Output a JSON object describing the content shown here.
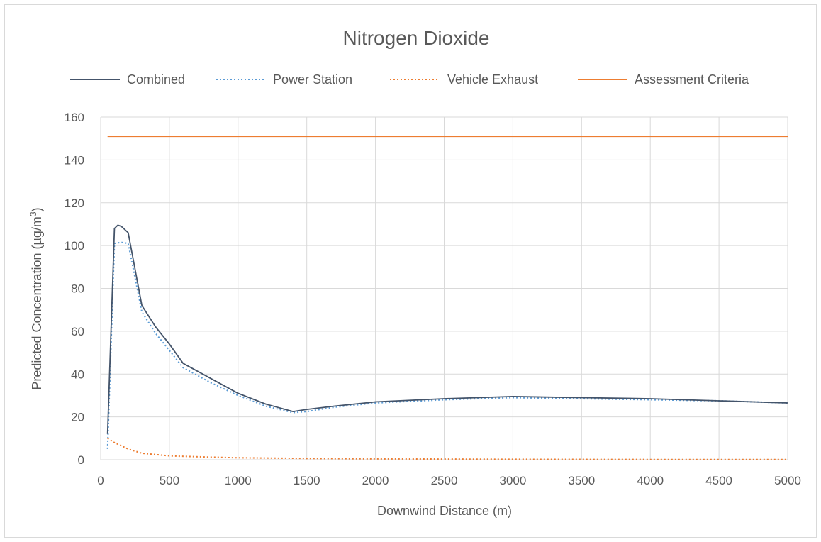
{
  "chart_data": {
    "type": "line",
    "title": "Nitrogen Dioxide",
    "xlabel": "Downwind Distance (m)",
    "ylabel_main": "Predicted Concentration (µg/m",
    "ylabel_sup": "3",
    "ylabel_end": ")",
    "xlim": [
      0,
      5000
    ],
    "ylim": [
      0,
      160
    ],
    "x_ticks": [
      0,
      500,
      1000,
      1500,
      2000,
      2500,
      3000,
      3500,
      4000,
      4500,
      5000
    ],
    "y_ticks": [
      0,
      20,
      40,
      60,
      80,
      100,
      120,
      140,
      160
    ],
    "grid": true,
    "legend_position": "top",
    "series": [
      {
        "name": "Combined",
        "color": "#44546a",
        "style": "solid",
        "points": [
          [
            50,
            12
          ],
          [
            100,
            108
          ],
          [
            125,
            109.5
          ],
          [
            150,
            109
          ],
          [
            200,
            106
          ],
          [
            300,
            72
          ],
          [
            400,
            62
          ],
          [
            500,
            54
          ],
          [
            600,
            45
          ],
          [
            800,
            38
          ],
          [
            1000,
            31
          ],
          [
            1200,
            26
          ],
          [
            1400,
            22.5
          ],
          [
            1500,
            23.5
          ],
          [
            1700,
            25
          ],
          [
            2000,
            27
          ],
          [
            2500,
            28.5
          ],
          [
            3000,
            29.5
          ],
          [
            3500,
            29
          ],
          [
            4000,
            28.5
          ],
          [
            4500,
            27.5
          ],
          [
            5000,
            26.5
          ]
        ]
      },
      {
        "name": "Power Station",
        "color": "#5b9bd5",
        "style": "dotted",
        "points": [
          [
            50,
            5
          ],
          [
            100,
            101
          ],
          [
            150,
            101.5
          ],
          [
            200,
            101
          ],
          [
            300,
            69
          ],
          [
            400,
            59
          ],
          [
            500,
            51
          ],
          [
            600,
            43
          ],
          [
            800,
            36
          ],
          [
            1000,
            30
          ],
          [
            1200,
            25
          ],
          [
            1400,
            22
          ],
          [
            1500,
            22.5
          ],
          [
            1700,
            24.5
          ],
          [
            2000,
            26.5
          ],
          [
            2500,
            28
          ],
          [
            3000,
            29
          ],
          [
            3500,
            28.5
          ],
          [
            4000,
            28
          ],
          [
            4500,
            27.5
          ],
          [
            5000,
            26.5
          ]
        ]
      },
      {
        "name": "Vehicle Exhaust",
        "color": "#ed7d31",
        "style": "dotted",
        "points": [
          [
            50,
            10
          ],
          [
            100,
            8
          ],
          [
            200,
            5
          ],
          [
            300,
            3
          ],
          [
            500,
            1.8
          ],
          [
            800,
            1.2
          ],
          [
            1000,
            0.9
          ],
          [
            1500,
            0.6
          ],
          [
            2000,
            0.4
          ],
          [
            2500,
            0.3
          ],
          [
            3000,
            0.2
          ],
          [
            4000,
            0.1
          ],
          [
            5000,
            0.1
          ]
        ]
      },
      {
        "name": "Assessment Criteria",
        "color": "#ed7d31",
        "style": "solid",
        "points": [
          [
            50,
            151
          ],
          [
            5000,
            151
          ]
        ]
      }
    ]
  }
}
